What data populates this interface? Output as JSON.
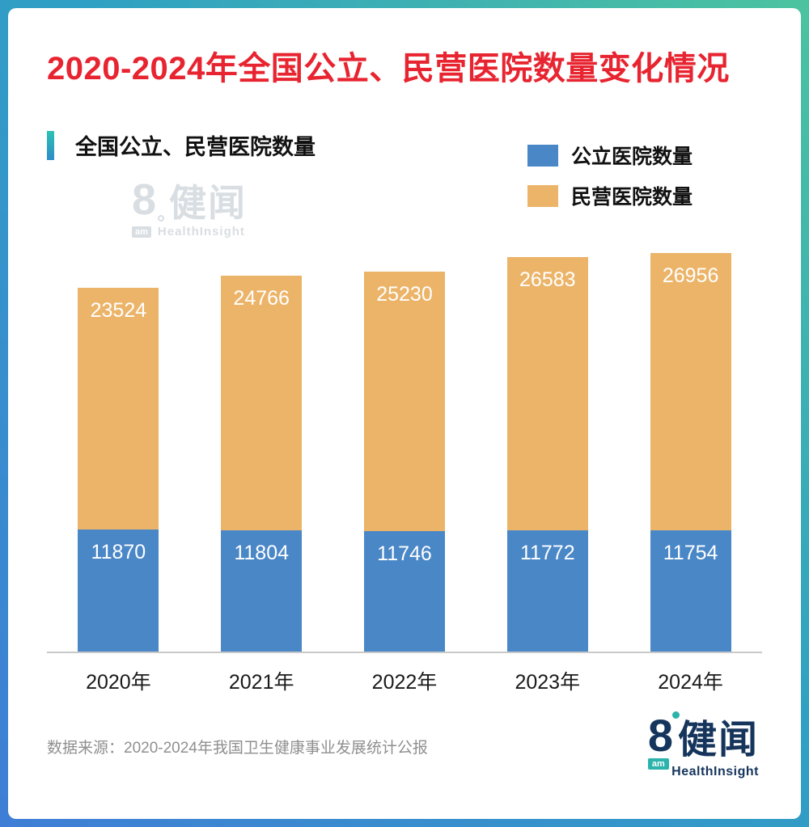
{
  "title": "2020-2024年全国公立、民营医院数量变化情况",
  "subtitle": "全国公立、民营医院数量",
  "source": "数据来源：2020-2024年我国卫生健康事业发展统计公报",
  "watermark": {
    "prefix": "8",
    "text": "健闻",
    "am": "am",
    "sub": "HealthInsight"
  },
  "logo": {
    "prefix": "8",
    "text": "健闻",
    "am": "am",
    "sub": "HealthInsight"
  },
  "colors": {
    "title_red": "#e72430",
    "accent_teal": "#2cc2b2",
    "accent_blue": "#2f8cc9",
    "public_blue": "#4a87c7",
    "private_orange": "#ecb469",
    "logo_navy": "#16355c",
    "logo_teal": "#2bb3ac",
    "frame_gradient_start": "#4cc39f",
    "frame_gradient_end": "#3f7ed6"
  },
  "chart_data": {
    "type": "bar",
    "stacked": true,
    "title": "全国公立、民营医院数量",
    "categories": [
      "2020年",
      "2021年",
      "2022年",
      "2023年",
      "2024年"
    ],
    "series": [
      {
        "name": "公立医院数量",
        "color": "#4a87c7",
        "values": [
          11870,
          11804,
          11746,
          11772,
          11754
        ]
      },
      {
        "name": "民营医院数量",
        "color": "#ecb469",
        "values": [
          23524,
          24766,
          25230,
          26583,
          26956
        ]
      }
    ],
    "totals": [
      35394,
      36570,
      36976,
      38355,
      38710
    ],
    "legend_position": "top-right",
    "grid": false,
    "value_labels": "inside-top",
    "xlabel": "",
    "ylabel": ""
  }
}
